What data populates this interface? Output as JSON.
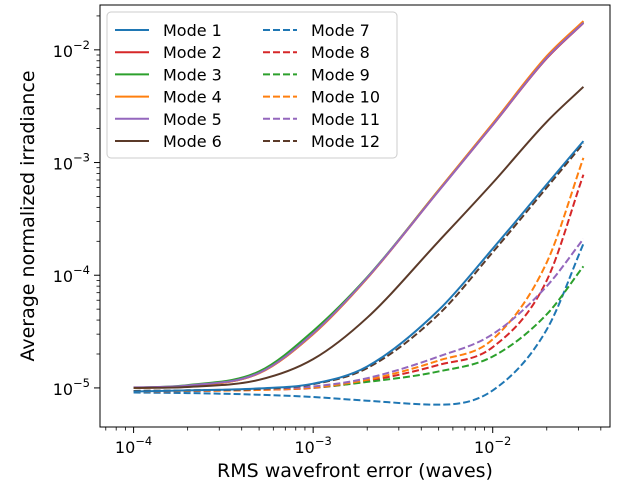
{
  "chart_data": {
    "type": "line",
    "xlabel": "RMS wavefront error (waves)",
    "ylabel": "Average normalized irradiance",
    "x_scale": "log",
    "y_scale": "log",
    "xlim": [
      6.5e-05,
      0.045
    ],
    "ylim": [
      4.5e-06,
      0.025
    ],
    "grid": false,
    "legend_position": "top-left",
    "legend_columns": 2,
    "x_ticks": [
      {
        "value": 0.0001,
        "base": "10",
        "exp": "−4"
      },
      {
        "value": 0.001,
        "base": "10",
        "exp": "−3"
      },
      {
        "value": 0.01,
        "base": "10",
        "exp": "−2"
      }
    ],
    "y_ticks": [
      {
        "value": 1e-05,
        "base": "10",
        "exp": "−5"
      },
      {
        "value": 0.0001,
        "base": "10",
        "exp": "−4"
      },
      {
        "value": 0.001,
        "base": "10",
        "exp": "−3"
      },
      {
        "value": 0.01,
        "base": "10",
        "exp": "−2"
      }
    ],
    "x": [
      0.0001,
      0.0002,
      0.0005,
      0.001,
      0.002,
      0.005,
      0.01,
      0.02,
      0.032
    ],
    "series": [
      {
        "name": "Mode 1",
        "color": "#1f77b4",
        "dash": false,
        "values": [
          9.3e-06,
          9.5e-06,
          9.9e-06,
          1.09e-05,
          1.55e-05,
          4.9e-05,
          0.000172,
          0.00064,
          0.00155
        ]
      },
      {
        "name": "Mode 2",
        "color": "#d62728",
        "dash": false,
        "values": [
          1e-05,
          1.04e-05,
          1.35e-05,
          3e-05,
          9.4e-05,
          0.00056,
          0.00215,
          0.0084,
          0.0173
        ]
      },
      {
        "name": "Mode 3",
        "color": "#2ca02c",
        "dash": false,
        "values": [
          1e-05,
          1.06e-05,
          1.4e-05,
          3.2e-05,
          9.6e-05,
          0.00057,
          0.0022,
          0.0086,
          0.0176
        ]
      },
      {
        "name": "Mode 4",
        "color": "#ff7f0e",
        "dash": false,
        "values": [
          1e-05,
          1.04e-05,
          1.35e-05,
          3e-05,
          9.4e-05,
          0.00057,
          0.00222,
          0.0088,
          0.018
        ]
      },
      {
        "name": "Mode 5",
        "color": "#9467bd",
        "dash": false,
        "values": [
          1.01e-05,
          1.05e-05,
          1.36e-05,
          3.05e-05,
          9.5e-05,
          0.00056,
          0.00216,
          0.0085,
          0.0174
        ]
      },
      {
        "name": "Mode 6",
        "color": "#5b3a29",
        "dash": false,
        "values": [
          1e-05,
          1.02e-05,
          1.18e-05,
          1.8e-05,
          4.2e-05,
          0.0002,
          0.00066,
          0.0023,
          0.0047
        ]
      },
      {
        "name": "Mode 7",
        "color": "#1f77b4",
        "dash": true,
        "values": [
          9.1e-06,
          9e-06,
          8.7e-06,
          8.3e-06,
          7.7e-06,
          7.1e-06,
          9.5e-06,
          3.3e-05,
          0.00019
        ]
      },
      {
        "name": "Mode 8",
        "color": "#d62728",
        "dash": true,
        "values": [
          9.3e-06,
          9.4e-06,
          9.6e-06,
          1e-05,
          1.15e-05,
          1.6e-05,
          2.3e-05,
          9e-05,
          0.00078
        ]
      },
      {
        "name": "Mode 9",
        "color": "#2ca02c",
        "dash": true,
        "values": [
          9.4e-06,
          9.5e-06,
          9.7e-06,
          1.01e-05,
          1.13e-05,
          1.4e-05,
          1.9e-05,
          4.5e-05,
          0.00012
        ]
      },
      {
        "name": "Mode 10",
        "color": "#ff7f0e",
        "dash": true,
        "values": [
          9.3e-06,
          9.4e-06,
          9.6e-06,
          1.01e-05,
          1.18e-05,
          1.75e-05,
          2.7e-05,
          0.00013,
          0.0011
        ]
      },
      {
        "name": "Mode 11",
        "color": "#9467bd",
        "dash": true,
        "values": [
          9.4e-06,
          9.5e-06,
          9.8e-06,
          1.03e-05,
          1.22e-05,
          1.9e-05,
          3e-05,
          8e-05,
          0.00021
        ]
      },
      {
        "name": "Mode 12",
        "color": "#5b3a29",
        "dash": true,
        "values": [
          9.4e-06,
          9.5e-06,
          9.8e-06,
          1.08e-05,
          1.5e-05,
          4.5e-05,
          0.00016,
          0.0006,
          0.00148
        ]
      }
    ]
  }
}
